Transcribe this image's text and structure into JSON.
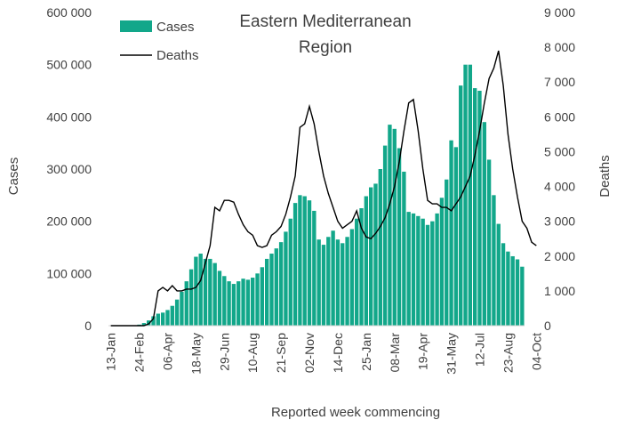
{
  "chart_data": {
    "type": "bar+line",
    "title_line1": "Eastern Mediterranean",
    "title_line2": "Region",
    "xlabel": "Reported week commencing",
    "ylabel_left": "Cases",
    "ylabel_right": "Deaths",
    "ylim_left": [
      0,
      600000
    ],
    "ylim_right": [
      0,
      9000
    ],
    "yticks_left": [
      "0",
      "100 000",
      "200 000",
      "300 000",
      "400 000",
      "500 000",
      "600 000"
    ],
    "yticks_right": [
      "0",
      "1 000",
      "2 000",
      "3 000",
      "4 000",
      "5 000",
      "6 000",
      "7 000",
      "8 000",
      "9 000"
    ],
    "x_tick_labels": [
      {
        "label": "13-Jan",
        "week": 1
      },
      {
        "label": "24-Feb",
        "week": 7
      },
      {
        "label": "06-Apr",
        "week": 13
      },
      {
        "label": "18-May",
        "week": 19
      },
      {
        "label": "29-Jun",
        "week": 25
      },
      {
        "label": "10-Aug",
        "week": 31
      },
      {
        "label": "21-Sep",
        "week": 37
      },
      {
        "label": "02-Nov",
        "week": 43
      },
      {
        "label": "14-Dec",
        "week": 49
      },
      {
        "label": "25-Jan",
        "week": 55
      },
      {
        "label": "08-Mar",
        "week": 61
      },
      {
        "label": "19-Apr",
        "week": 67
      },
      {
        "label": "31-May",
        "week": 73
      },
      {
        "label": "12-Jul",
        "week": 79
      },
      {
        "label": "23-Aug",
        "week": 85
      },
      {
        "label": "04-Oct",
        "week": 91
      }
    ],
    "legend_position": "top-left",
    "series": [
      {
        "name": "Cases",
        "type": "bar",
        "axis": "left",
        "color": "#12a78a",
        "values": [
          0,
          0,
          0,
          0,
          0,
          0,
          2000,
          5000,
          10000,
          18000,
          23000,
          25000,
          30000,
          38000,
          50000,
          65000,
          85000,
          108000,
          132000,
          138000,
          128000,
          128000,
          120000,
          105000,
          95000,
          85000,
          80000,
          85000,
          90000,
          88000,
          92000,
          100000,
          112000,
          128000,
          138000,
          148000,
          160000,
          180000,
          205000,
          235000,
          250000,
          248000,
          240000,
          220000,
          165000,
          155000,
          170000,
          182000,
          165000,
          158000,
          170000,
          185000,
          205000,
          225000,
          248000,
          265000,
          272000,
          300000,
          345000,
          385000,
          377000,
          340000,
          295000,
          218000,
          215000,
          210000,
          205000,
          193000,
          200000,
          215000,
          245000,
          280000,
          355000,
          342000,
          460000,
          500000,
          500000,
          455000,
          450000,
          390000,
          318000,
          250000,
          195000,
          158000,
          142000,
          133000,
          127000,
          113000
        ]
      },
      {
        "name": "Deaths",
        "type": "line",
        "axis": "right",
        "color": "#000000",
        "values": [
          0,
          0,
          0,
          0,
          0,
          0,
          0,
          0,
          50,
          200,
          1000,
          1100,
          1000,
          1150,
          1000,
          1000,
          1050,
          1050,
          1100,
          1300,
          1800,
          2300,
          3400,
          3300,
          3600,
          3600,
          3550,
          3200,
          2900,
          2700,
          2600,
          2300,
          2250,
          2300,
          2600,
          2700,
          2850,
          3200,
          3700,
          4300,
          5700,
          5800,
          6300,
          5800,
          5000,
          4300,
          3800,
          3400,
          3000,
          2800,
          2900,
          3000,
          3300,
          2800,
          2550,
          2500,
          2650,
          2850,
          3100,
          3500,
          4000,
          4700,
          5600,
          6400,
          6500,
          5600,
          4500,
          3600,
          3500,
          3500,
          3400,
          3400,
          3300,
          3500,
          3700,
          4000,
          4300,
          4900,
          5600,
          6400,
          7100,
          7400,
          7900,
          6900,
          5500,
          4500,
          3700,
          3000,
          2800,
          2400,
          2300
        ],
        "x_offset_weeks": 0
      }
    ]
  }
}
